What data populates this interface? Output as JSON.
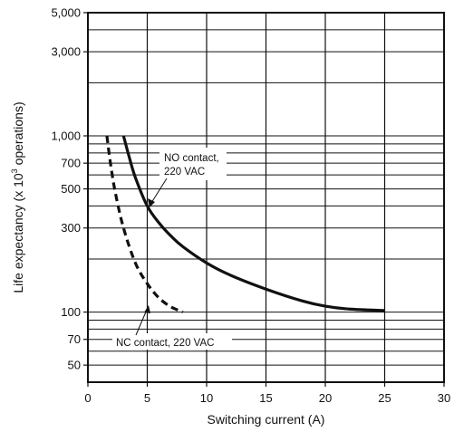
{
  "chart_data": {
    "type": "line",
    "title": "",
    "xlabel": "Switching current (A)",
    "ylabel_parts": [
      "Life expectancy (x 10",
      "3",
      " operations)"
    ],
    "xlim": [
      0,
      30
    ],
    "ylim": [
      40,
      5000
    ],
    "y_scale": "log",
    "x_ticks": [
      0,
      5,
      10,
      15,
      20,
      25,
      30
    ],
    "x_tick_labels": [
      "0",
      "5",
      "10",
      "15",
      "20",
      "25",
      "30"
    ],
    "y_ticks": [
      50,
      70,
      100,
      300,
      500,
      700,
      1000,
      3000,
      5000
    ],
    "y_tick_labels": [
      "50",
      "70",
      "100",
      "300",
      "500",
      "700",
      "1,000",
      "3,000",
      "5,000"
    ],
    "y_grid": [
      40,
      50,
      60,
      70,
      80,
      90,
      100,
      200,
      300,
      400,
      500,
      600,
      700,
      800,
      900,
      1000,
      2000,
      3000,
      4000,
      5000
    ],
    "grid": true,
    "series": [
      {
        "name": "NO contact, 220 VAC",
        "label_lines": [
          "NO contact,",
          "220 VAC"
        ],
        "style": "solid",
        "color": "#111111",
        "x": [
          3.0,
          3.5,
          4.0,
          5.0,
          6.0,
          7.0,
          8.0,
          10.0,
          12.0,
          15.0,
          18.0,
          20.0,
          22.0,
          25.0
        ],
        "y": [
          1000,
          750,
          580,
          400,
          320,
          270,
          235,
          190,
          162,
          135,
          116,
          108,
          104,
          102
        ]
      },
      {
        "name": "NC contact, 220 VAC",
        "label_lines": [
          "NC contact, 220 VAC"
        ],
        "style": "dashed",
        "color": "#111111",
        "x": [
          1.6,
          1.9,
          2.3,
          3.0,
          4.0,
          5.0,
          6.0,
          7.0,
          8.0
        ],
        "y": [
          1000,
          700,
          480,
          300,
          190,
          145,
          120,
          107,
          100
        ]
      }
    ]
  }
}
